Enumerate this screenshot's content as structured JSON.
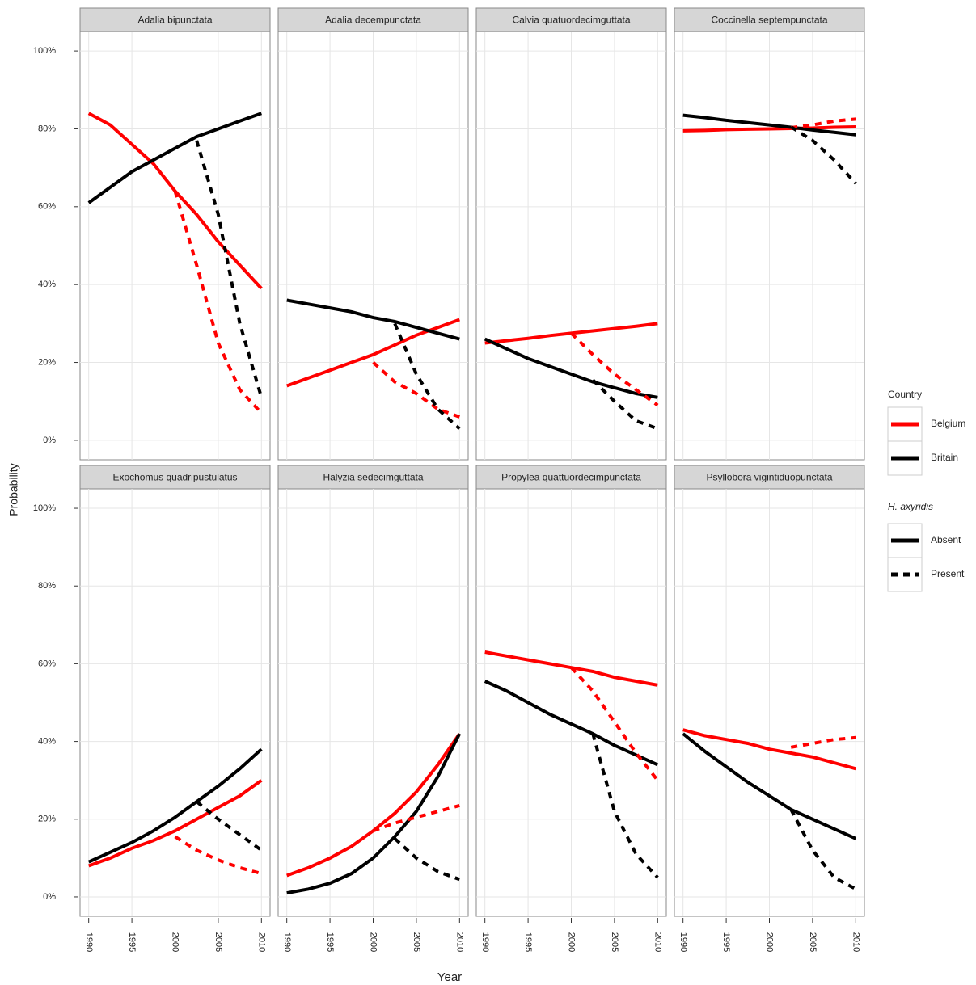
{
  "figure": {
    "ylabel": "Probability",
    "xlabel": "Year",
    "xlim": [
      1989,
      2011
    ],
    "xticks": [
      1990,
      1995,
      2000,
      2005,
      2010
    ],
    "ylim": [
      -5,
      105
    ],
    "yticks": [
      {
        "value": 0,
        "label": "0%"
      },
      {
        "value": 20,
        "label": "20%"
      },
      {
        "value": 40,
        "label": "40%"
      },
      {
        "value": 60,
        "label": "60%"
      },
      {
        "value": 80,
        "label": "80%"
      },
      {
        "value": 100,
        "label": "100%"
      }
    ],
    "grid": true,
    "legend": {
      "country": {
        "title": "Country",
        "items": [
          {
            "name": "Belgium",
            "color": "#ff0000"
          },
          {
            "name": "Britain",
            "color": "#000000"
          }
        ]
      },
      "presence": {
        "title": "H. axyridis",
        "items": [
          {
            "name": "Absent",
            "dashed": false
          },
          {
            "name": "Present",
            "dashed": true
          }
        ]
      }
    }
  },
  "chart_data": [
    {
      "type": "line",
      "title": "Adalia bipunctata",
      "x": [
        1990,
        1992.5,
        1995,
        1997.5,
        2000,
        2002.5,
        2005,
        2007.5,
        2010
      ],
      "series": [
        {
          "color": "#ff0000",
          "dashed": false,
          "values": [
            84,
            81,
            76,
            71,
            64,
            58,
            51,
            45,
            39
          ]
        },
        {
          "color": "#000000",
          "dashed": false,
          "values": [
            61,
            65,
            69,
            72,
            75,
            78,
            80,
            82,
            84
          ]
        },
        {
          "color": "#ff0000",
          "dashed": true,
          "values": [
            null,
            null,
            null,
            null,
            64,
            45,
            25,
            13,
            7
          ]
        },
        {
          "color": "#000000",
          "dashed": true,
          "values": [
            null,
            null,
            null,
            null,
            null,
            77,
            58,
            30,
            11
          ]
        }
      ]
    },
    {
      "type": "line",
      "title": "Adalia decempunctata",
      "x": [
        1990,
        1992.5,
        1995,
        1997.5,
        2000,
        2002.5,
        2005,
        2007.5,
        2010
      ],
      "series": [
        {
          "color": "#ff0000",
          "dashed": false,
          "values": [
            14,
            16,
            18,
            20,
            22,
            24.5,
            27,
            29,
            31
          ]
        },
        {
          "color": "#000000",
          "dashed": false,
          "values": [
            36,
            35,
            34,
            33,
            31.5,
            30.5,
            29,
            27.5,
            26
          ]
        },
        {
          "color": "#ff0000",
          "dashed": true,
          "values": [
            null,
            null,
            null,
            null,
            20,
            15,
            12,
            8,
            6
          ]
        },
        {
          "color": "#000000",
          "dashed": true,
          "values": [
            null,
            null,
            null,
            null,
            null,
            30,
            17,
            8,
            3
          ]
        }
      ]
    },
    {
      "type": "line",
      "title": "Calvia quatuordecimguttata",
      "x": [
        1990,
        1992.5,
        1995,
        1997.5,
        2000,
        2002.5,
        2005,
        2007.5,
        2010
      ],
      "series": [
        {
          "color": "#ff0000",
          "dashed": false,
          "values": [
            25,
            25.6,
            26.2,
            26.9,
            27.5,
            28.1,
            28.7,
            29.3,
            30
          ]
        },
        {
          "color": "#000000",
          "dashed": false,
          "values": [
            26,
            23.5,
            21,
            19,
            17,
            15,
            13.5,
            12,
            11
          ]
        },
        {
          "color": "#ff0000",
          "dashed": true,
          "values": [
            null,
            null,
            null,
            null,
            27.5,
            22,
            17,
            13,
            9
          ]
        },
        {
          "color": "#000000",
          "dashed": true,
          "values": [
            null,
            null,
            null,
            null,
            null,
            15.5,
            10,
            5,
            3
          ]
        }
      ]
    },
    {
      "type": "line",
      "title": "Coccinella septempunctata",
      "x": [
        1990,
        1992.5,
        1995,
        1997.5,
        2000,
        2002.5,
        2005,
        2007.5,
        2010
      ],
      "series": [
        {
          "color": "#ff0000",
          "dashed": false,
          "values": [
            79.5,
            79.6,
            79.8,
            79.9,
            80,
            80.1,
            80.2,
            80.4,
            80.5
          ]
        },
        {
          "color": "#000000",
          "dashed": false,
          "values": [
            83.5,
            82.9,
            82.2,
            81.6,
            81,
            80.4,
            79.7,
            79.1,
            78.5
          ]
        },
        {
          "color": "#ff0000",
          "dashed": true,
          "values": [
            null,
            null,
            null,
            null,
            null,
            80.3,
            81,
            82,
            82.5
          ]
        },
        {
          "color": "#000000",
          "dashed": true,
          "values": [
            null,
            null,
            null,
            null,
            null,
            80.5,
            77,
            72,
            66
          ]
        }
      ]
    },
    {
      "type": "line",
      "title": "Exochomus quadripustulatus",
      "x": [
        1990,
        1992.5,
        1995,
        1997.5,
        2000,
        2002.5,
        2005,
        2007.5,
        2010
      ],
      "series": [
        {
          "color": "#ff0000",
          "dashed": false,
          "values": [
            8,
            10,
            12.5,
            14.5,
            17,
            20,
            23,
            26,
            30
          ]
        },
        {
          "color": "#000000",
          "dashed": false,
          "values": [
            9,
            11.5,
            14,
            17,
            20.5,
            24.5,
            28.5,
            33,
            38
          ]
        },
        {
          "color": "#ff0000",
          "dashed": true,
          "values": [
            null,
            null,
            null,
            null,
            15.5,
            12,
            9.5,
            7.5,
            6
          ]
        },
        {
          "color": "#000000",
          "dashed": true,
          "values": [
            null,
            null,
            null,
            null,
            null,
            24.5,
            20,
            16,
            12
          ]
        }
      ]
    },
    {
      "type": "line",
      "title": "Halyzia sedecimguttata",
      "x": [
        1990,
        1992.5,
        1995,
        1997.5,
        2000,
        2002.5,
        2005,
        2007.5,
        2010
      ],
      "series": [
        {
          "color": "#ff0000",
          "dashed": false,
          "values": [
            5.5,
            7.5,
            10,
            13,
            17,
            21.5,
            27,
            34,
            42
          ]
        },
        {
          "color": "#000000",
          "dashed": false,
          "values": [
            1,
            2,
            3.5,
            6,
            10,
            15.5,
            22,
            31,
            42
          ]
        },
        {
          "color": "#ff0000",
          "dashed": true,
          "values": [
            null,
            null,
            null,
            null,
            17,
            19,
            20.5,
            22,
            23.5
          ]
        },
        {
          "color": "#000000",
          "dashed": true,
          "values": [
            null,
            null,
            null,
            null,
            null,
            15,
            10,
            6.5,
            4.5
          ]
        }
      ]
    },
    {
      "type": "line",
      "title": "Propylea quattuordecimpunctata",
      "x": [
        1990,
        1992.5,
        1995,
        1997.5,
        2000,
        2002.5,
        2005,
        2007.5,
        2010
      ],
      "series": [
        {
          "color": "#ff0000",
          "dashed": false,
          "values": [
            63,
            62,
            61,
            60,
            59,
            58,
            56.5,
            55.5,
            54.5
          ]
        },
        {
          "color": "#000000",
          "dashed": false,
          "values": [
            55.5,
            53,
            50,
            47,
            44.5,
            42,
            39,
            36.5,
            34
          ]
        },
        {
          "color": "#ff0000",
          "dashed": true,
          "values": [
            null,
            null,
            null,
            null,
            59,
            53,
            45,
            37,
            30
          ]
        },
        {
          "color": "#000000",
          "dashed": true,
          "values": [
            null,
            null,
            null,
            null,
            null,
            42,
            22,
            11,
            5
          ]
        }
      ]
    },
    {
      "type": "line",
      "title": "Psyllobora vigintiduopunctata",
      "x": [
        1990,
        1992.5,
        1995,
        1997.5,
        2000,
        2002.5,
        2005,
        2007.5,
        2010
      ],
      "series": [
        {
          "color": "#ff0000",
          "dashed": false,
          "values": [
            43,
            41.5,
            40.5,
            39.5,
            38,
            37,
            36,
            34.5,
            33
          ]
        },
        {
          "color": "#000000",
          "dashed": false,
          "values": [
            42,
            37.5,
            33.5,
            29.5,
            26,
            22.5,
            20,
            17.5,
            15
          ]
        },
        {
          "color": "#ff0000",
          "dashed": true,
          "values": [
            null,
            null,
            null,
            null,
            null,
            38.5,
            39.5,
            40.5,
            41
          ]
        },
        {
          "color": "#000000",
          "dashed": true,
          "values": [
            null,
            null,
            null,
            null,
            null,
            22.5,
            12,
            5,
            2
          ]
        }
      ]
    }
  ]
}
